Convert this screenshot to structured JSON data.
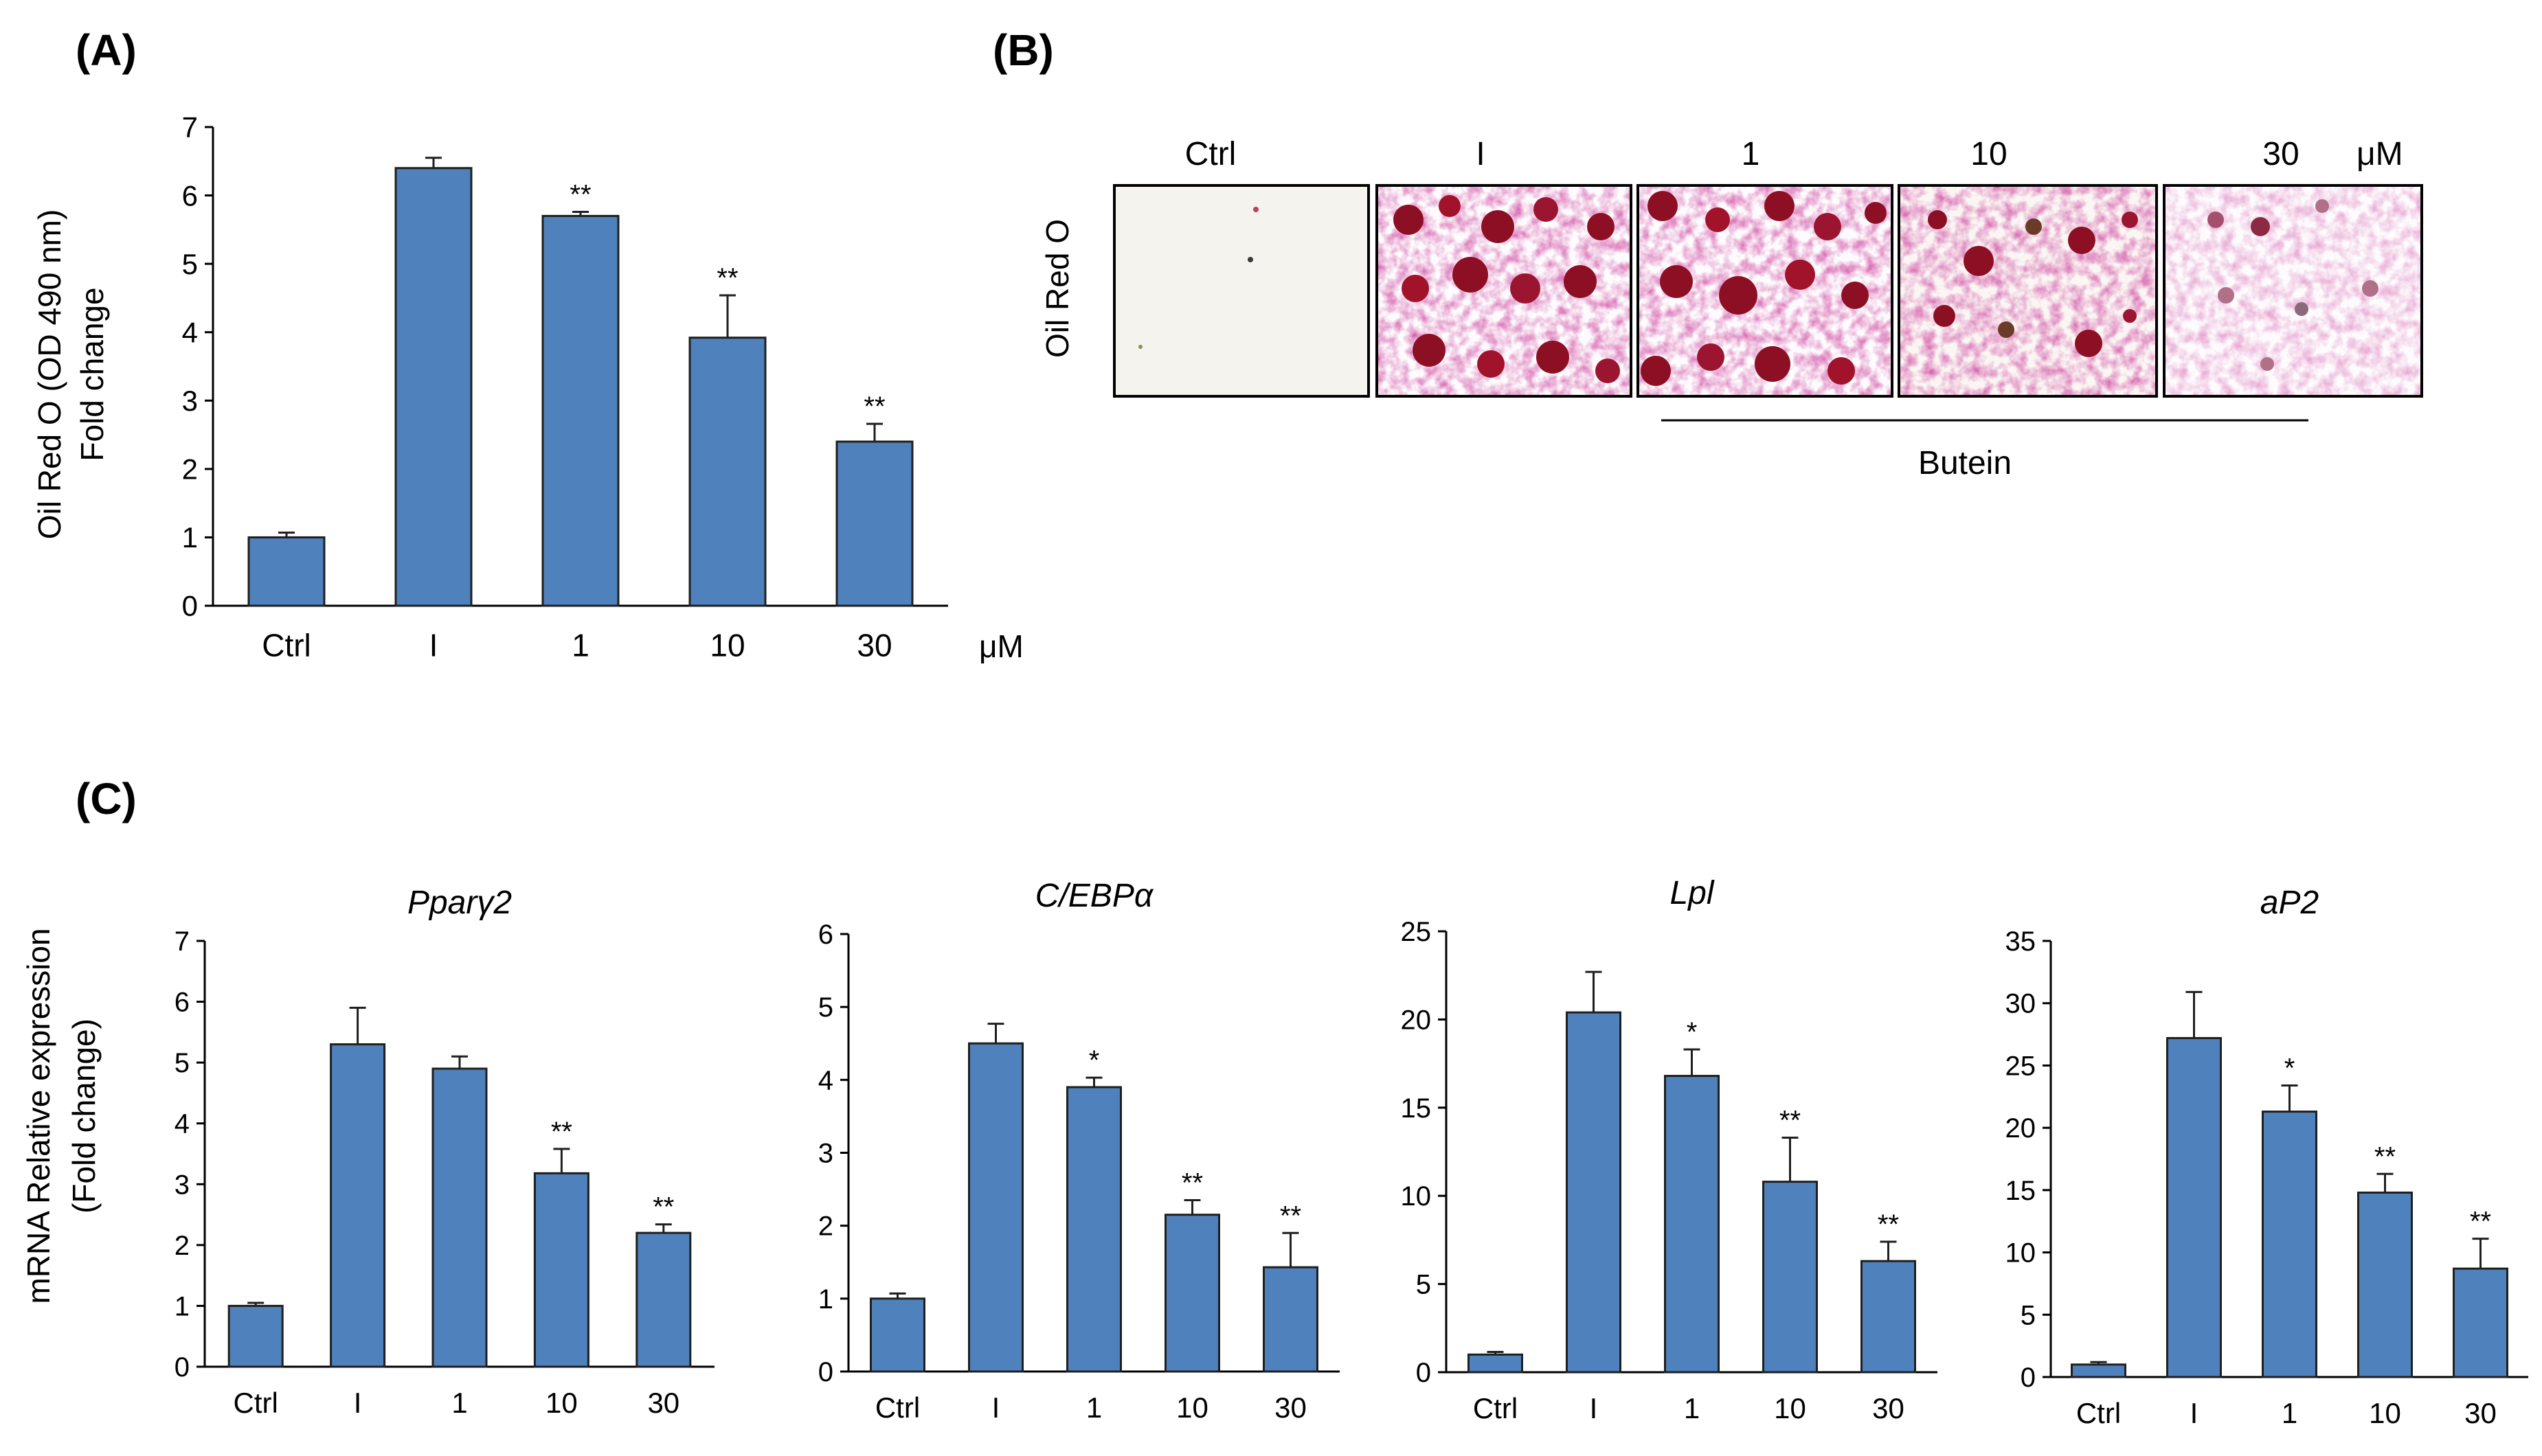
{
  "panel_labels": {
    "a": "(A)",
    "b": "(B)",
    "c": "(C)"
  },
  "colors": {
    "bar": "#4F81BD",
    "bar_edge": "#1F1F1F",
    "axis": "#000000",
    "text": "#000000"
  },
  "panel_a_extra": {
    "unit": "μM",
    "ylabel_line1": "Oil Red O (OD 490 nm)",
    "ylabel_line2": "Fold change"
  },
  "panel_b": {
    "labels": [
      "Ctrl",
      "I",
      "1",
      "10",
      "30"
    ],
    "unit": "μM",
    "row_label": "Oil Red O",
    "group_label": "Butein",
    "stain_density": [
      "none",
      "high",
      "high",
      "medium",
      "low"
    ]
  },
  "panel_c_extra": {
    "ylabel_line1": "mRNA Relative expression",
    "ylabel_line2": "(Fold change)"
  },
  "chart_data": [
    {
      "id": "A",
      "type": "bar",
      "title": "",
      "categories": [
        "Ctrl",
        "I",
        "1",
        "10",
        "30"
      ],
      "values": [
        1.0,
        6.4,
        5.7,
        3.92,
        2.4
      ],
      "errors": [
        0.07,
        0.15,
        0.06,
        0.62,
        0.26
      ],
      "significance": [
        "",
        "",
        "**",
        "**",
        "**"
      ],
      "yticks": [
        "0",
        "1",
        "2",
        "3",
        "4",
        "5",
        "6",
        "7"
      ],
      "ylim": [
        0,
        7
      ],
      "xlabel": "μM",
      "ylabel": "Oil Red O (OD 490 nm) Fold change"
    },
    {
      "id": "C1",
      "type": "bar",
      "title": "Pparγ2",
      "categories": [
        "Ctrl",
        "I",
        "1",
        "10",
        "30"
      ],
      "values": [
        1.0,
        5.3,
        4.9,
        3.18,
        2.2
      ],
      "errors": [
        0.05,
        0.6,
        0.2,
        0.4,
        0.14
      ],
      "significance": [
        "",
        "",
        "",
        "**",
        "**"
      ],
      "yticks": [
        "0",
        "1",
        "2",
        "3",
        "4",
        "5",
        "6",
        "7"
      ],
      "ylim": [
        0,
        7
      ],
      "xlabel": "",
      "ylabel": "mRNA Relative expression (Fold change)"
    },
    {
      "id": "C2",
      "type": "bar",
      "title": "C/EBPα",
      "categories": [
        "Ctrl",
        "I",
        "1",
        "10",
        "30"
      ],
      "values": [
        1.0,
        4.5,
        3.9,
        2.15,
        1.43
      ],
      "errors": [
        0.07,
        0.27,
        0.13,
        0.2,
        0.47
      ],
      "significance": [
        "",
        "",
        "*",
        "**",
        "**"
      ],
      "yticks": [
        "0",
        "1",
        "2",
        "3",
        "4",
        "5",
        "6"
      ],
      "ylim": [
        0,
        6
      ],
      "xlabel": "",
      "ylabel": ""
    },
    {
      "id": "C3",
      "type": "bar",
      "title": "Lpl",
      "categories": [
        "Ctrl",
        "I",
        "1",
        "10",
        "30"
      ],
      "values": [
        1.0,
        20.4,
        16.8,
        10.8,
        6.3
      ],
      "errors": [
        0.15,
        2.3,
        1.5,
        2.5,
        1.1
      ],
      "significance": [
        "",
        "",
        "*",
        "**",
        "**"
      ],
      "yticks": [
        "0",
        "5",
        "10",
        "15",
        "20",
        "25"
      ],
      "ylim": [
        0,
        25
      ],
      "xlabel": "",
      "ylabel": ""
    },
    {
      "id": "C4",
      "type": "bar",
      "title": "aP2",
      "categories": [
        "Ctrl",
        "I",
        "1",
        "10",
        "30"
      ],
      "values": [
        1.0,
        27.2,
        21.3,
        14.8,
        8.7
      ],
      "errors": [
        0.2,
        3.7,
        2.1,
        1.5,
        2.4
      ],
      "significance": [
        "",
        "",
        "*",
        "**",
        "**"
      ],
      "yticks": [
        "0",
        "5",
        "10",
        "15",
        "20",
        "25",
        "30",
        "35"
      ],
      "ylim": [
        0,
        35
      ],
      "xlabel": "",
      "ylabel": ""
    }
  ]
}
